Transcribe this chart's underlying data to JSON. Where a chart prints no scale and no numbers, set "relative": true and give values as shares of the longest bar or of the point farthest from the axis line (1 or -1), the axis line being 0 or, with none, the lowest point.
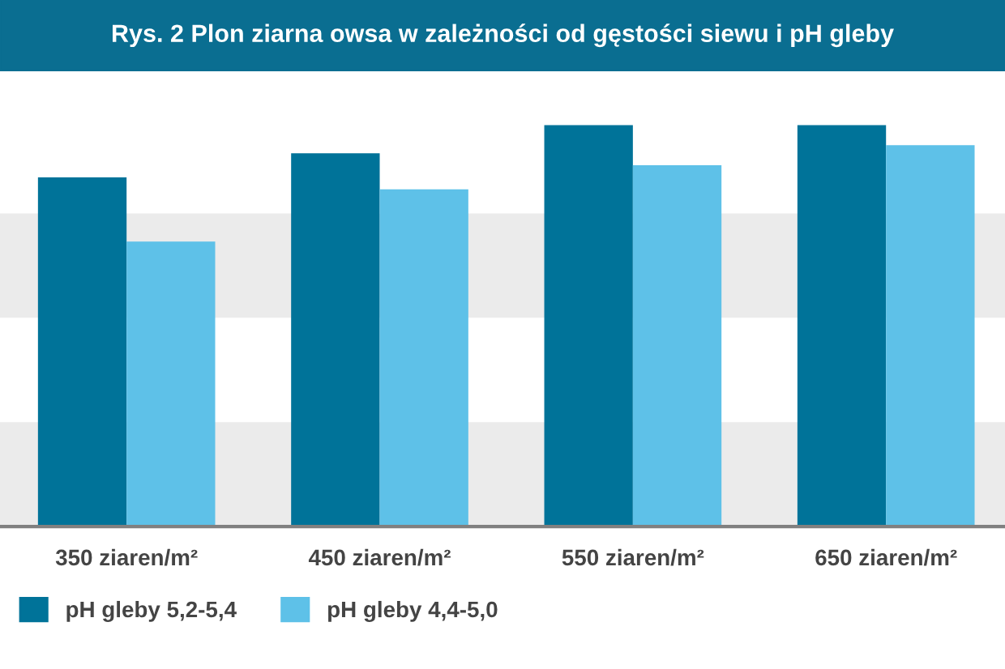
{
  "chart_data": {
    "type": "bar",
    "title": "Rys. 2 Plon ziarna owsa w zależności od gęstości siewu i pH gleby",
    "relative": true,
    "categories": [
      "350 ziaren/m²",
      "450 ziaren/m²",
      "550 ziaren/m²",
      "650 ziaren/m²"
    ],
    "series": [
      {
        "name": "pH gleby 5,2-5,4",
        "color": "#007399",
        "values": [
          0.87,
          0.93,
          1,
          1
        ]
      },
      {
        "name": "pH gleby 4,4-5,0",
        "color": "#5ec1e8",
        "values": [
          0.71,
          0.84,
          0.9,
          0.95
        ]
      }
    ],
    "bands": [
      {
        "axis": "y",
        "from": 0,
        "to": 0.26,
        "color": "#ebebeb"
      },
      {
        "axis": "y",
        "from": 0.52,
        "to": 0.78,
        "color": "#ebebeb"
      }
    ],
    "grid": false,
    "legend": "bottom left"
  }
}
